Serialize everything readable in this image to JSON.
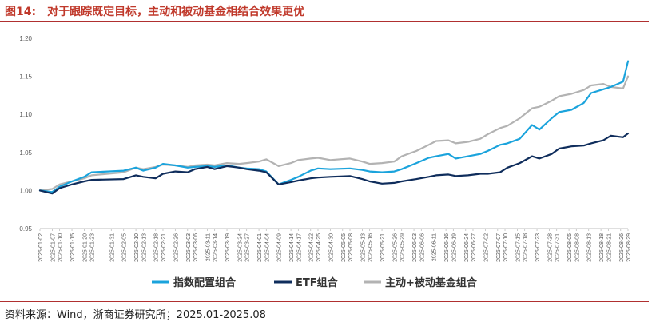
{
  "figure": {
    "number": "图14:",
    "title": "对于跟踪既定目标，主动和被动基金相结合效果更优",
    "source": "资料来源：Wind，浙商证券研究所；2025.01-2025.08"
  },
  "colors": {
    "accent": "#c0392b",
    "series": [
      "#1aa3dc",
      "#0f2d5c",
      "#b3b3b3"
    ]
  },
  "chart_data": {
    "type": "line",
    "title": "",
    "xlabel": "",
    "ylabel": "",
    "ylim": [
      0.95,
      1.2
    ],
    "yticks": [
      "0.95",
      "1.00",
      "1.05",
      "1.10",
      "1.15",
      "1.20"
    ],
    "grid": false,
    "legend_position": "bottom",
    "x": [
      "2025-01-02",
      "2025-01-07",
      "2025-01-10",
      "2025-01-15",
      "2025-01-20",
      "2025-01-23",
      "2025-02-05",
      "2025-02-10",
      "2025-02-13",
      "2025-02-18",
      "2025-02-21",
      "2025-02-26",
      "2025-03-03",
      "2025-03-06",
      "2025-03-11",
      "2025-03-14",
      "2025-03-19",
      "2025-03-24",
      "2025-03-27",
      "2025-04-01",
      "2025-04-04",
      "2025-04-09",
      "2025-04-14",
      "2025-04-17",
      "2025-04-22",
      "2025-04-25",
      "2025-04-30",
      "2025-05-08",
      "2025-05-13",
      "2025-05-16",
      "2025-05-21",
      "2025-05-26",
      "2025-05-29",
      "2025-06-04",
      "2025-06-09",
      "2025-06-12",
      "2025-06-17",
      "2025-06-20",
      "2025-06-25",
      "2025-06-30",
      "2025-07-03",
      "2025-07-08",
      "2025-07-11",
      "2025-07-16",
      "2025-07-21",
      "2025-07-24",
      "2025-07-29",
      "2025-08-01",
      "2025-08-06",
      "2025-08-11",
      "2025-08-14",
      "2025-08-19",
      "2025-08-22",
      "2025-08-27",
      "2025-08-29"
    ],
    "xtick_labels": [
      "2025-01-02",
      "2025-01-07",
      "2025-01-10",
      "2025-01-15",
      "2025-01-20",
      "2025-01-23",
      "2025-01-31",
      "2025-02-05",
      "2025-02-10",
      "2025-02-13",
      "2025-02-18",
      "2025-02-21",
      "2025-02-26",
      "2025-03-03",
      "2025-03-06",
      "2025-03-11",
      "2025-03-14",
      "2025-03-19",
      "2025-03-24",
      "2025-03-27",
      "2025-04-01",
      "2025-04-04",
      "2025-04-09",
      "2025-04-14",
      "2025-04-17",
      "2025-04-22",
      "2025-04-25",
      "2025-04-30",
      "2025-05-05",
      "2025-05-08",
      "2025-05-13",
      "2025-05-16",
      "2025-05-21",
      "2025-05-26",
      "2025-05-29",
      "2025-06-03",
      "2025-06-06",
      "2025-06-11",
      "2025-06-16",
      "2025-06-19",
      "2025-06-24",
      "2025-06-27",
      "2025-07-02",
      "2025-07-07",
      "2025-07-10",
      "2025-07-15",
      "2025-07-18",
      "2025-07-23",
      "2025-07-28",
      "2025-07-31",
      "2025-08-05",
      "2025-08-08",
      "2025-08-13",
      "2025-08-18",
      "2025-08-21",
      "2025-08-26",
      "2025-08-29"
    ],
    "series": [
      {
        "name": "指数配置组合",
        "values": [
          1.0,
          0.998,
          1.005,
          1.012,
          1.018,
          1.024,
          1.026,
          1.03,
          1.026,
          1.03,
          1.035,
          1.033,
          1.03,
          1.031,
          1.032,
          1.031,
          1.033,
          1.03,
          1.029,
          1.028,
          1.025,
          1.008,
          1.014,
          1.018,
          1.026,
          1.029,
          1.028,
          1.029,
          1.027,
          1.025,
          1.024,
          1.025,
          1.028,
          1.036,
          1.043,
          1.045,
          1.048,
          1.042,
          1.045,
          1.048,
          1.052,
          1.06,
          1.062,
          1.068,
          1.086,
          1.08,
          1.095,
          1.103,
          1.106,
          1.115,
          1.128,
          1.133,
          1.136,
          1.143,
          1.17
        ]
      },
      {
        "name": "ETF组合",
        "values": [
          1.0,
          0.996,
          1.003,
          1.008,
          1.012,
          1.014,
          1.015,
          1.02,
          1.018,
          1.016,
          1.022,
          1.025,
          1.024,
          1.028,
          1.031,
          1.028,
          1.032,
          1.03,
          1.028,
          1.026,
          1.024,
          1.008,
          1.011,
          1.013,
          1.016,
          1.017,
          1.018,
          1.019,
          1.015,
          1.012,
          1.009,
          1.01,
          1.012,
          1.015,
          1.018,
          1.02,
          1.021,
          1.019,
          1.02,
          1.022,
          1.022,
          1.024,
          1.03,
          1.036,
          1.045,
          1.042,
          1.048,
          1.055,
          1.058,
          1.059,
          1.062,
          1.066,
          1.072,
          1.07,
          1.075
        ]
      },
      {
        "name": "主动+被动基金组合",
        "values": [
          1.0,
          1.002,
          1.008,
          1.012,
          1.016,
          1.02,
          1.024,
          1.03,
          1.028,
          1.031,
          1.034,
          1.033,
          1.031,
          1.033,
          1.034,
          1.033,
          1.036,
          1.035,
          1.036,
          1.038,
          1.041,
          1.032,
          1.036,
          1.04,
          1.042,
          1.043,
          1.04,
          1.042,
          1.038,
          1.035,
          1.036,
          1.038,
          1.045,
          1.052,
          1.06,
          1.065,
          1.066,
          1.062,
          1.064,
          1.068,
          1.074,
          1.082,
          1.085,
          1.095,
          1.108,
          1.11,
          1.118,
          1.124,
          1.127,
          1.132,
          1.138,
          1.14,
          1.136,
          1.134,
          1.15
        ]
      }
    ]
  }
}
